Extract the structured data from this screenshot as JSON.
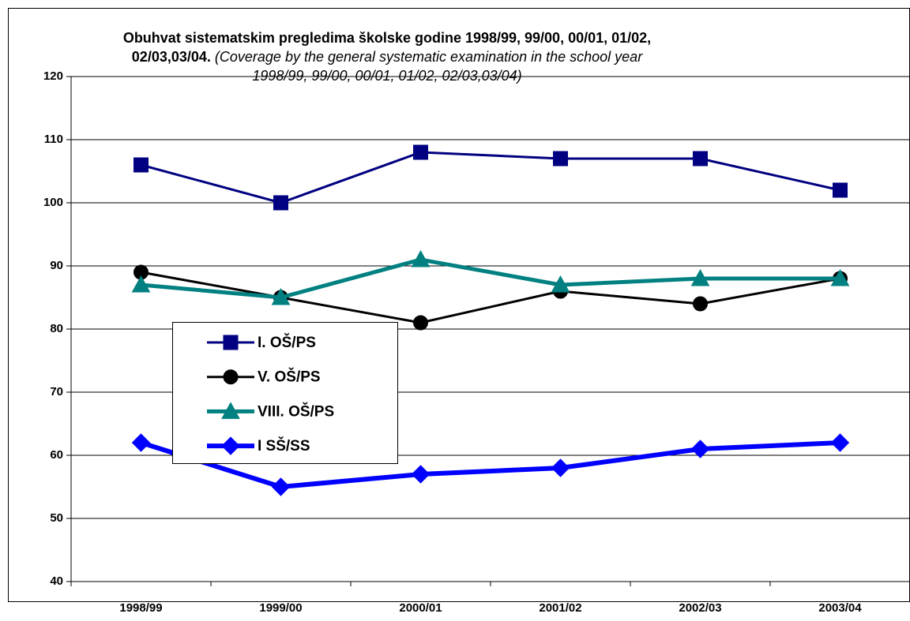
{
  "chart_data": {
    "type": "line",
    "title": "Obuhvat sistematskim pregledima školske godine 1998/99, 99/00, 00/01, 01/02, 02/03,03/04.",
    "subtitle": "(Coverage by the general systematic examination in the school year 1998/99, 99/00, 00/01, 01/02, 02/03,03/04)",
    "categories": [
      "1998/99",
      "1999/00",
      "2000/01",
      "2001/02",
      "2002/03",
      "2003/04"
    ],
    "series": [
      {
        "name": "I. OŠ/PS",
        "color": "#000080",
        "marker": "square",
        "values": [
          106,
          100,
          108,
          107,
          107,
          102
        ]
      },
      {
        "name": "V. OŠ/PS",
        "color": "#000000",
        "marker": "circle",
        "values": [
          89,
          85,
          81,
          86,
          84,
          88
        ]
      },
      {
        "name": "VIII. OŠ/PS",
        "color": "#008080",
        "marker": "triangle",
        "values": [
          87,
          85,
          91,
          87,
          88,
          88
        ]
      },
      {
        "name": "I SŠ/SS",
        "color": "#0000ff",
        "marker": "diamond",
        "values": [
          62,
          55,
          57,
          58,
          61,
          62
        ]
      }
    ],
    "ylim": [
      40,
      120
    ],
    "yticks": [
      40,
      50,
      60,
      70,
      80,
      90,
      100,
      110,
      120
    ],
    "grid": true,
    "legend": "left"
  }
}
